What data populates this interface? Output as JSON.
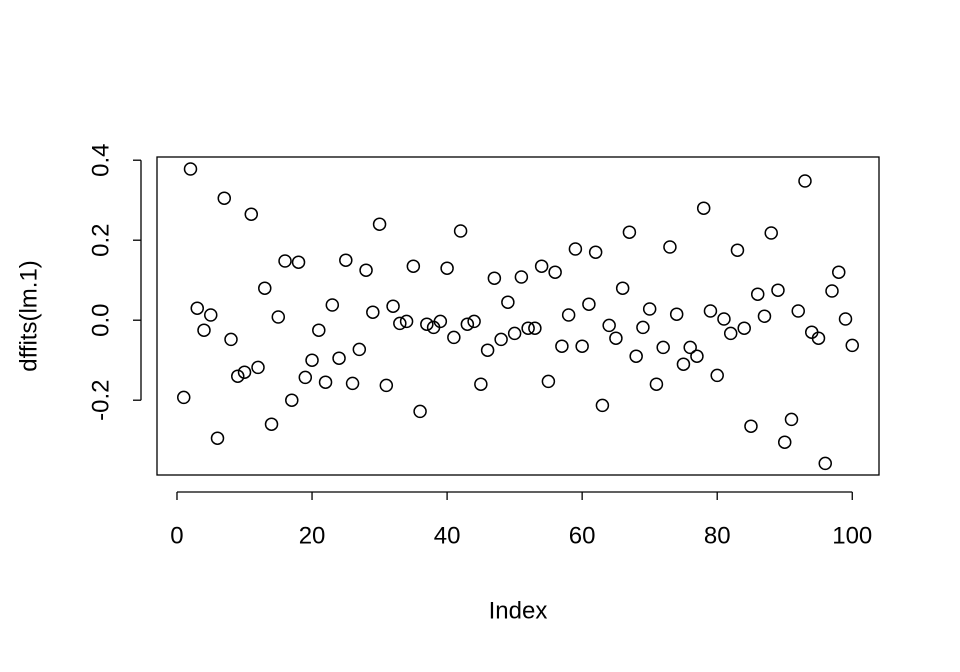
{
  "chart_data": {
    "type": "scatter",
    "x_label": "Index",
    "y_label": "dffits(lm.1)",
    "x": [
      1,
      2,
      3,
      4,
      5,
      6,
      7,
      8,
      9,
      10,
      11,
      12,
      13,
      14,
      15,
      16,
      17,
      18,
      19,
      20,
      21,
      22,
      23,
      24,
      25,
      26,
      27,
      28,
      29,
      30,
      31,
      32,
      33,
      34,
      35,
      36,
      37,
      38,
      39,
      40,
      41,
      42,
      43,
      44,
      45,
      46,
      47,
      48,
      49,
      50,
      51,
      52,
      53,
      54,
      55,
      56,
      57,
      58,
      59,
      60,
      61,
      62,
      63,
      64,
      65,
      66,
      67,
      68,
      69,
      70,
      71,
      72,
      73,
      74,
      75,
      76,
      77,
      78,
      79,
      80,
      81,
      82,
      83,
      84,
      85,
      86,
      87,
      88,
      89,
      90,
      91,
      92,
      93,
      94,
      95,
      96,
      97,
      98,
      99,
      100
    ],
    "values": [
      -0.193,
      0.378,
      0.03,
      -0.025,
      0.013,
      -0.295,
      0.305,
      -0.048,
      -0.14,
      -0.13,
      0.265,
      -0.118,
      0.08,
      -0.26,
      0.008,
      0.148,
      -0.2,
      0.145,
      -0.143,
      -0.1,
      -0.025,
      -0.155,
      0.038,
      -0.095,
      0.15,
      -0.158,
      -0.073,
      0.125,
      0.02,
      0.24,
      -0.163,
      0.035,
      -0.008,
      -0.003,
      0.135,
      -0.228,
      -0.01,
      -0.018,
      -0.003,
      0.13,
      -0.043,
      0.223,
      -0.01,
      -0.003,
      -0.16,
      -0.075,
      0.105,
      -0.048,
      0.045,
      -0.033,
      0.108,
      -0.02,
      -0.02,
      0.135,
      -0.153,
      0.12,
      -0.065,
      0.013,
      0.178,
      -0.065,
      0.04,
      0.17,
      -0.213,
      -0.013,
      -0.045,
      0.08,
      0.22,
      -0.09,
      -0.018,
      0.028,
      -0.16,
      -0.068,
      0.183,
      0.015,
      -0.11,
      -0.068,
      -0.09,
      0.28,
      0.023,
      -0.138,
      0.003,
      -0.033,
      0.175,
      -0.02,
      -0.265,
      0.065,
      0.01,
      0.218,
      0.075,
      -0.305,
      -0.248,
      0.023,
      0.348,
      -0.03,
      -0.045,
      -0.358,
      0.073,
      0.12,
      0.003,
      -0.063
    ],
    "color": "#000000",
    "xlim": [
      -2.96,
      103.96
    ],
    "xticks": [
      0,
      20,
      40,
      60,
      80,
      100
    ],
    "ylim": [
      -0.387,
      0.408
    ],
    "yticks": [
      -0.2,
      {
        "value": 0,
        "label": "0.0"
      },
      0.2,
      0.4
    ]
  }
}
